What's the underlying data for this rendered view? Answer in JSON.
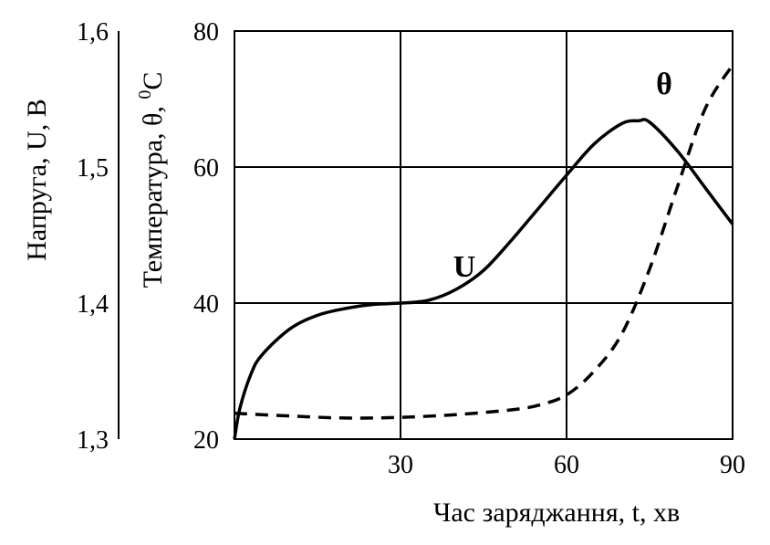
{
  "chart_data": {
    "type": "line",
    "xlabel": "Час заряджання, t, хв",
    "x_ticks": [
      "30",
      "60",
      "90"
    ],
    "xlim": [
      0,
      90
    ],
    "y_left": {
      "label": "Напруга, U, В",
      "ticks": [
        "1,6",
        "1,5",
        "1,4",
        "1,3"
      ],
      "lim": [
        1.3,
        1.6
      ]
    },
    "y_right": {
      "label_main": "Температура, θ, ",
      "label_sup": "0",
      "label_unit": "C",
      "ticks": [
        "80",
        "60",
        "40",
        "20"
      ],
      "lim": [
        20,
        80
      ]
    },
    "grid": true,
    "series": [
      {
        "name": "U",
        "axis": "left",
        "style": "solid",
        "x": [
          0,
          1,
          3,
          5,
          10,
          15,
          20,
          25,
          30,
          35,
          40,
          45,
          50,
          55,
          60,
          65,
          70,
          73,
          75,
          80,
          85,
          90
        ],
        "y": [
          1.3,
          1.323,
          1.348,
          1.362,
          1.381,
          1.391,
          1.396,
          1.399,
          1.4,
          1.402,
          1.41,
          1.424,
          1.446,
          1.47,
          1.494,
          1.517,
          1.532,
          1.534,
          1.533,
          1.512,
          1.485,
          1.458
        ]
      },
      {
        "name": "θ",
        "axis": "right",
        "style": "dashed",
        "x": [
          0,
          10,
          20,
          30,
          40,
          50,
          55,
          60,
          65,
          70,
          75,
          80,
          85,
          90
        ],
        "y": [
          23.8,
          23.4,
          23.1,
          23.2,
          23.6,
          24.3,
          25.0,
          26.5,
          30.0,
          35.5,
          45.0,
          57.0,
          68.5,
          75.0
        ]
      }
    ]
  }
}
